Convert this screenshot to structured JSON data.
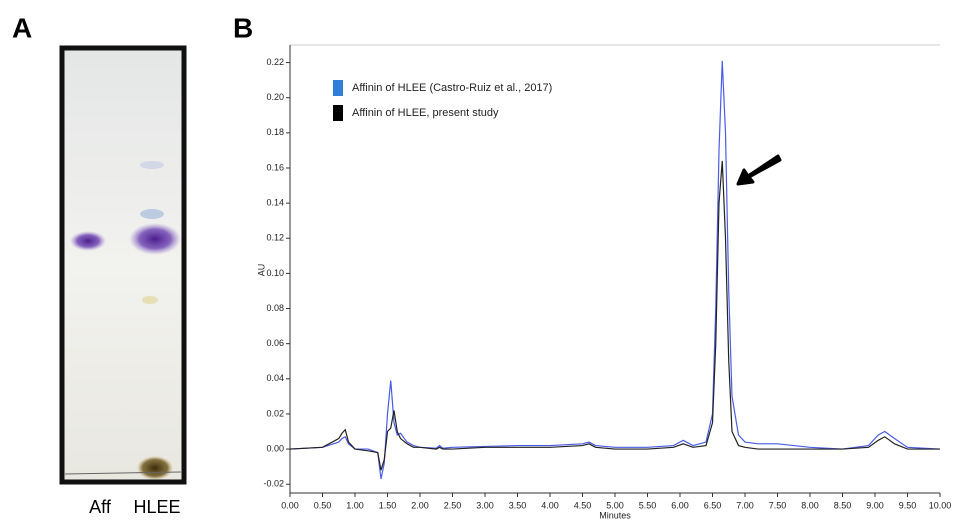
{
  "panels": {
    "a": {
      "label": "A",
      "lanes": [
        "Aff",
        "HLEE"
      ]
    },
    "b": {
      "label": "B"
    }
  },
  "chart_data": {
    "type": "line",
    "x_label": "Minutes",
    "y_label": "AU",
    "x": [
      0,
      0.5,
      0.75,
      0.8,
      0.85,
      0.9,
      1.0,
      1.2,
      1.35,
      1.4,
      1.45,
      1.5,
      1.55,
      1.6,
      1.65,
      1.7,
      1.8,
      1.9,
      2.0,
      2.25,
      2.3,
      2.35,
      2.5,
      3.0,
      3.5,
      4.0,
      4.5,
      4.6,
      4.7,
      5.0,
      5.5,
      5.9,
      6.05,
      6.2,
      6.4,
      6.5,
      6.55,
      6.6,
      6.65,
      6.7,
      6.75,
      6.8,
      6.9,
      7.0,
      7.2,
      7.5,
      8.0,
      8.5,
      8.9,
      9.05,
      9.15,
      9.3,
      9.5,
      10.0
    ],
    "series": [
      {
        "name": "Affinin of HLEE (Castro-Ruiz et al., 2017)",
        "color": "#4a5ce6",
        "legend_color": "#2f7fd8",
        "values": [
          0,
          0.001,
          0.004,
          0.006,
          0.007,
          0.003,
          0,
          0,
          -0.002,
          -0.017,
          -0.008,
          0.02,
          0.039,
          0.015,
          0.008,
          0.009,
          0.004,
          0.002,
          0.001,
          0.0005,
          0.002,
          0.0005,
          0.001,
          0.0015,
          0.002,
          0.002,
          0.003,
          0.004,
          0.002,
          0.001,
          0.001,
          0.002,
          0.005,
          0.002,
          0.004,
          0.02,
          0.08,
          0.17,
          0.221,
          0.18,
          0.09,
          0.03,
          0.008,
          0.004,
          0.003,
          0.003,
          0.001,
          0,
          0.002,
          0.008,
          0.01,
          0.006,
          0.001,
          0
        ]
      },
      {
        "name": "Affinin of HLEE, present study",
        "color": "#222222",
        "legend_color": "#000000",
        "values": [
          0,
          0.001,
          0.006,
          0.009,
          0.011,
          0.004,
          0,
          -0.001,
          -0.002,
          -0.012,
          -0.006,
          0.01,
          0.012,
          0.022,
          0.01,
          0.006,
          0.003,
          0.001,
          0.001,
          0,
          0.001,
          0,
          0,
          0.001,
          0.001,
          0.001,
          0.002,
          0.003,
          0.001,
          0,
          0,
          0.001,
          0.003,
          0.001,
          0.002,
          0.015,
          0.06,
          0.14,
          0.164,
          0.12,
          0.05,
          0.01,
          0.002,
          0.001,
          0,
          0,
          0,
          0,
          0.001,
          0.005,
          0.007,
          0.003,
          0,
          0
        ]
      }
    ],
    "xlim": [
      0,
      10
    ],
    "xticks": [
      {
        "value": 0,
        "label": "0.00"
      },
      {
        "value": 0.5,
        "label": "0.50"
      },
      {
        "value": 1,
        "label": "1.00"
      },
      {
        "value": 1.5,
        "label": "1.50"
      },
      {
        "value": 2,
        "label": "2.00"
      },
      {
        "value": 2.5,
        "label": "2.50"
      },
      {
        "value": 3,
        "label": "3.00"
      },
      {
        "value": 3.5,
        "label": "3.50"
      },
      {
        "value": 4,
        "label": "4.00"
      },
      {
        "value": 4.5,
        "label": "4.50"
      },
      {
        "value": 5,
        "label": "5.00"
      },
      {
        "value": 5.5,
        "label": "5.50"
      },
      {
        "value": 6,
        "label": "6.00"
      },
      {
        "value": 6.5,
        "label": "6.50"
      },
      {
        "value": 7,
        "label": "7.00"
      },
      {
        "value": 7.5,
        "label": "7.50"
      },
      {
        "value": 8,
        "label": "8.00"
      },
      {
        "value": 8.5,
        "label": "8.50"
      },
      {
        "value": 9,
        "label": "9.00"
      },
      {
        "value": 9.5,
        "label": "9.50"
      },
      {
        "value": 10,
        "label": "10.00"
      }
    ],
    "ylim": [
      -0.025,
      0.23
    ],
    "yticks": [
      {
        "value": -0.02,
        "label": "-0.02"
      },
      {
        "value": 0,
        "label": "0.00"
      },
      {
        "value": 0.02,
        "label": "0.02"
      },
      {
        "value": 0.04,
        "label": "0.04"
      },
      {
        "value": 0.06,
        "label": "0.06"
      },
      {
        "value": 0.08,
        "label": "0.08"
      },
      {
        "value": 0.1,
        "label": "0.10"
      },
      {
        "value": 0.12,
        "label": "0.12"
      },
      {
        "value": 0.14,
        "label": "0.14"
      },
      {
        "value": 0.16,
        "label": "0.16"
      },
      {
        "value": 0.18,
        "label": "0.18"
      },
      {
        "value": 0.2,
        "label": "0.20"
      },
      {
        "value": 0.22,
        "label": "0.22"
      }
    ]
  }
}
